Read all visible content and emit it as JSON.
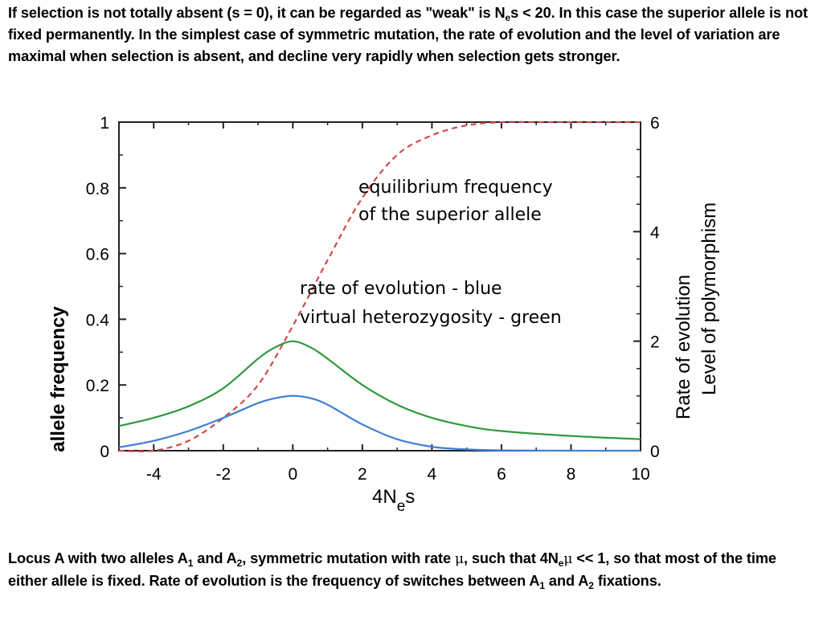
{
  "top_text": {
    "p1": "If selection is not totally absent (s = 0), it can be regarded as \"weak\" is N",
    "sub_e": "e",
    "p2": "s < 20. In this case the superior allele is not fixed permanently. In the simplest case of symmetric mutation, the rate of evolution and the level of variation are maximal when selection is absent, and decline very rapidly when selection gets stronger."
  },
  "bottom_text": {
    "p1": "Locus A with two alleles A",
    "sub1": "1",
    "p2": " and A",
    "sub2": "2",
    "p3": ", symmetric mutation with rate ",
    "mu1": "μ",
    "p4": ", such that 4N",
    "sub_e": "e",
    "mu2": "μ",
    "p5": " << 1, so that most of the time either allele is fixed. Rate of evolution is the frequency of switches between A",
    "sub3": "1",
    "p6": " and A",
    "sub4": "2",
    "p7": " fixations."
  },
  "chart_data": {
    "type": "line",
    "xlabel": "4N",
    "xlabel_sub": "e",
    "xlabel_tail": "s",
    "ylabel_left": "allele frequency",
    "ylabel_right_1": "Rate of evolution",
    "ylabel_right_2": "Level of polymorphism",
    "xlim": [
      -5,
      10
    ],
    "ylim_left": [
      0,
      1
    ],
    "ylim_right": [
      0,
      6
    ],
    "x_ticks": [
      "-4",
      "-2",
      "0",
      "2",
      "4",
      "6",
      "8",
      "10"
    ],
    "y_ticks_left": [
      "0",
      "0.2",
      "0.4",
      "0.6",
      "0.8",
      "1"
    ],
    "y_ticks_right": [
      "0",
      "2",
      "4",
      "6"
    ],
    "annotation_1_line1": "equilibrium frequency",
    "annotation_1_line2": "of the superior allele",
    "annotation_2_line1": "rate of evolution - blue",
    "annotation_2_line2": "virtual heterozygosity - green",
    "series": [
      {
        "color": "#d44a4a",
        "style": "dashed",
        "x": [
          -5,
          -4,
          -3,
          -2,
          -1,
          0,
          1,
          2,
          3,
          4,
          5,
          6,
          7,
          8,
          10
        ],
        "y": [
          0.0,
          0.0,
          0.03,
          0.1,
          0.2,
          0.38,
          0.58,
          0.77,
          0.9,
          0.96,
          0.99,
          1.0,
          1.0,
          1.0,
          1.0
        ]
      },
      {
        "color": "#2f9a3a",
        "style": "solid",
        "x": [
          -5,
          -4,
          -3,
          -2,
          -1,
          -0.5,
          0,
          0.5,
          1,
          2,
          3,
          4,
          5,
          6,
          8,
          10
        ],
        "y": [
          0.075,
          0.1,
          0.135,
          0.19,
          0.28,
          0.315,
          0.333,
          0.315,
          0.28,
          0.2,
          0.14,
          0.1,
          0.075,
          0.06,
          0.045,
          0.035
        ]
      },
      {
        "color": "#3d7fd6",
        "style": "solid",
        "x": [
          -5,
          -4,
          -3,
          -2,
          -1,
          -0.5,
          0,
          0.5,
          1,
          2,
          3,
          4,
          5,
          6,
          8,
          10
        ],
        "y": [
          0.01,
          0.03,
          0.06,
          0.1,
          0.145,
          0.16,
          0.167,
          0.16,
          0.14,
          0.08,
          0.035,
          0.012,
          0.004,
          0.001,
          0.0,
          0.0
        ]
      }
    ]
  }
}
